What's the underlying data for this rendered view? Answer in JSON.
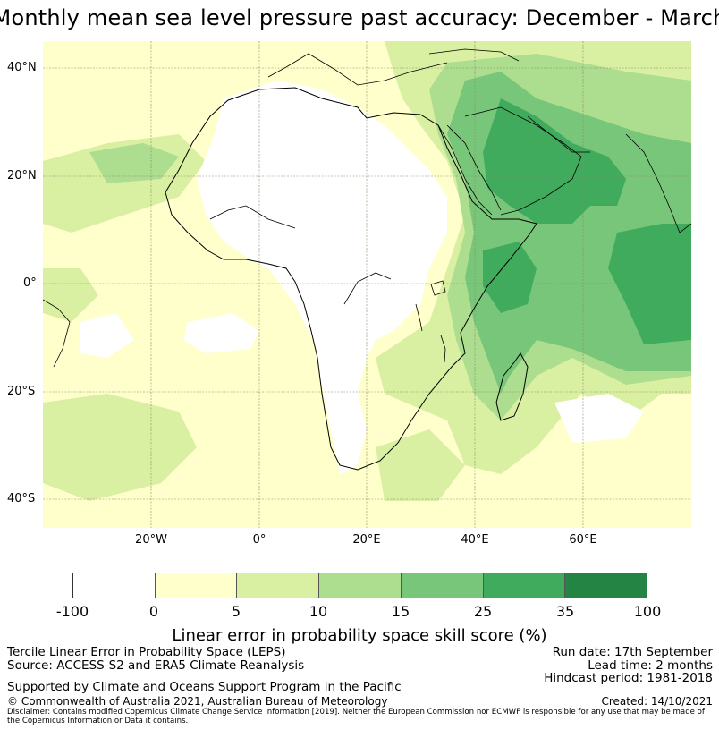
{
  "title": "Monthly mean sea level pressure past accuracy: December - March",
  "map": {
    "lat_labels": [
      "40°N",
      "20°N",
      "0°",
      "20°S",
      "40°S"
    ],
    "lon_labels": [
      "20°W",
      "0°",
      "20°E",
      "40°E",
      "60°E"
    ],
    "lon_range": [
      -40,
      80
    ],
    "lat_range": [
      -45,
      47
    ]
  },
  "colorbar": {
    "ticks": [
      "-100",
      "0",
      "5",
      "10",
      "15",
      "25",
      "35",
      "100"
    ],
    "colors": [
      "#ffffff",
      "#ffffcc",
      "#d9f0a3",
      "#addd8e",
      "#78c679",
      "#41ab5d",
      "#238443"
    ],
    "label": "Linear error in probability space skill score (%)"
  },
  "info": {
    "line1": "Tercile Linear Error in Probability Space (LEPS)",
    "line2": "Source: ACCESS-S2 and ERA5 Climate Reanalysis",
    "line3": "Supported by Climate and Oceans Support Program in the Pacific",
    "line4": "© Commonwealth of Australia 2021, Australian Bureau of Meteorology",
    "run_date": "Run date: 17th September",
    "lead_time": "Lead time: 2 months",
    "hindcast": "Hindcast period: 1981-2018",
    "created": "Created: 14/10/2021",
    "disclaimer": "Disclaimer: Contains modified Copernicus Climate Change Service Information [2019]. Neither the European Commission nor ECMWF is responsible for any use that may be made of the Copernicus Information or Data it contains."
  }
}
